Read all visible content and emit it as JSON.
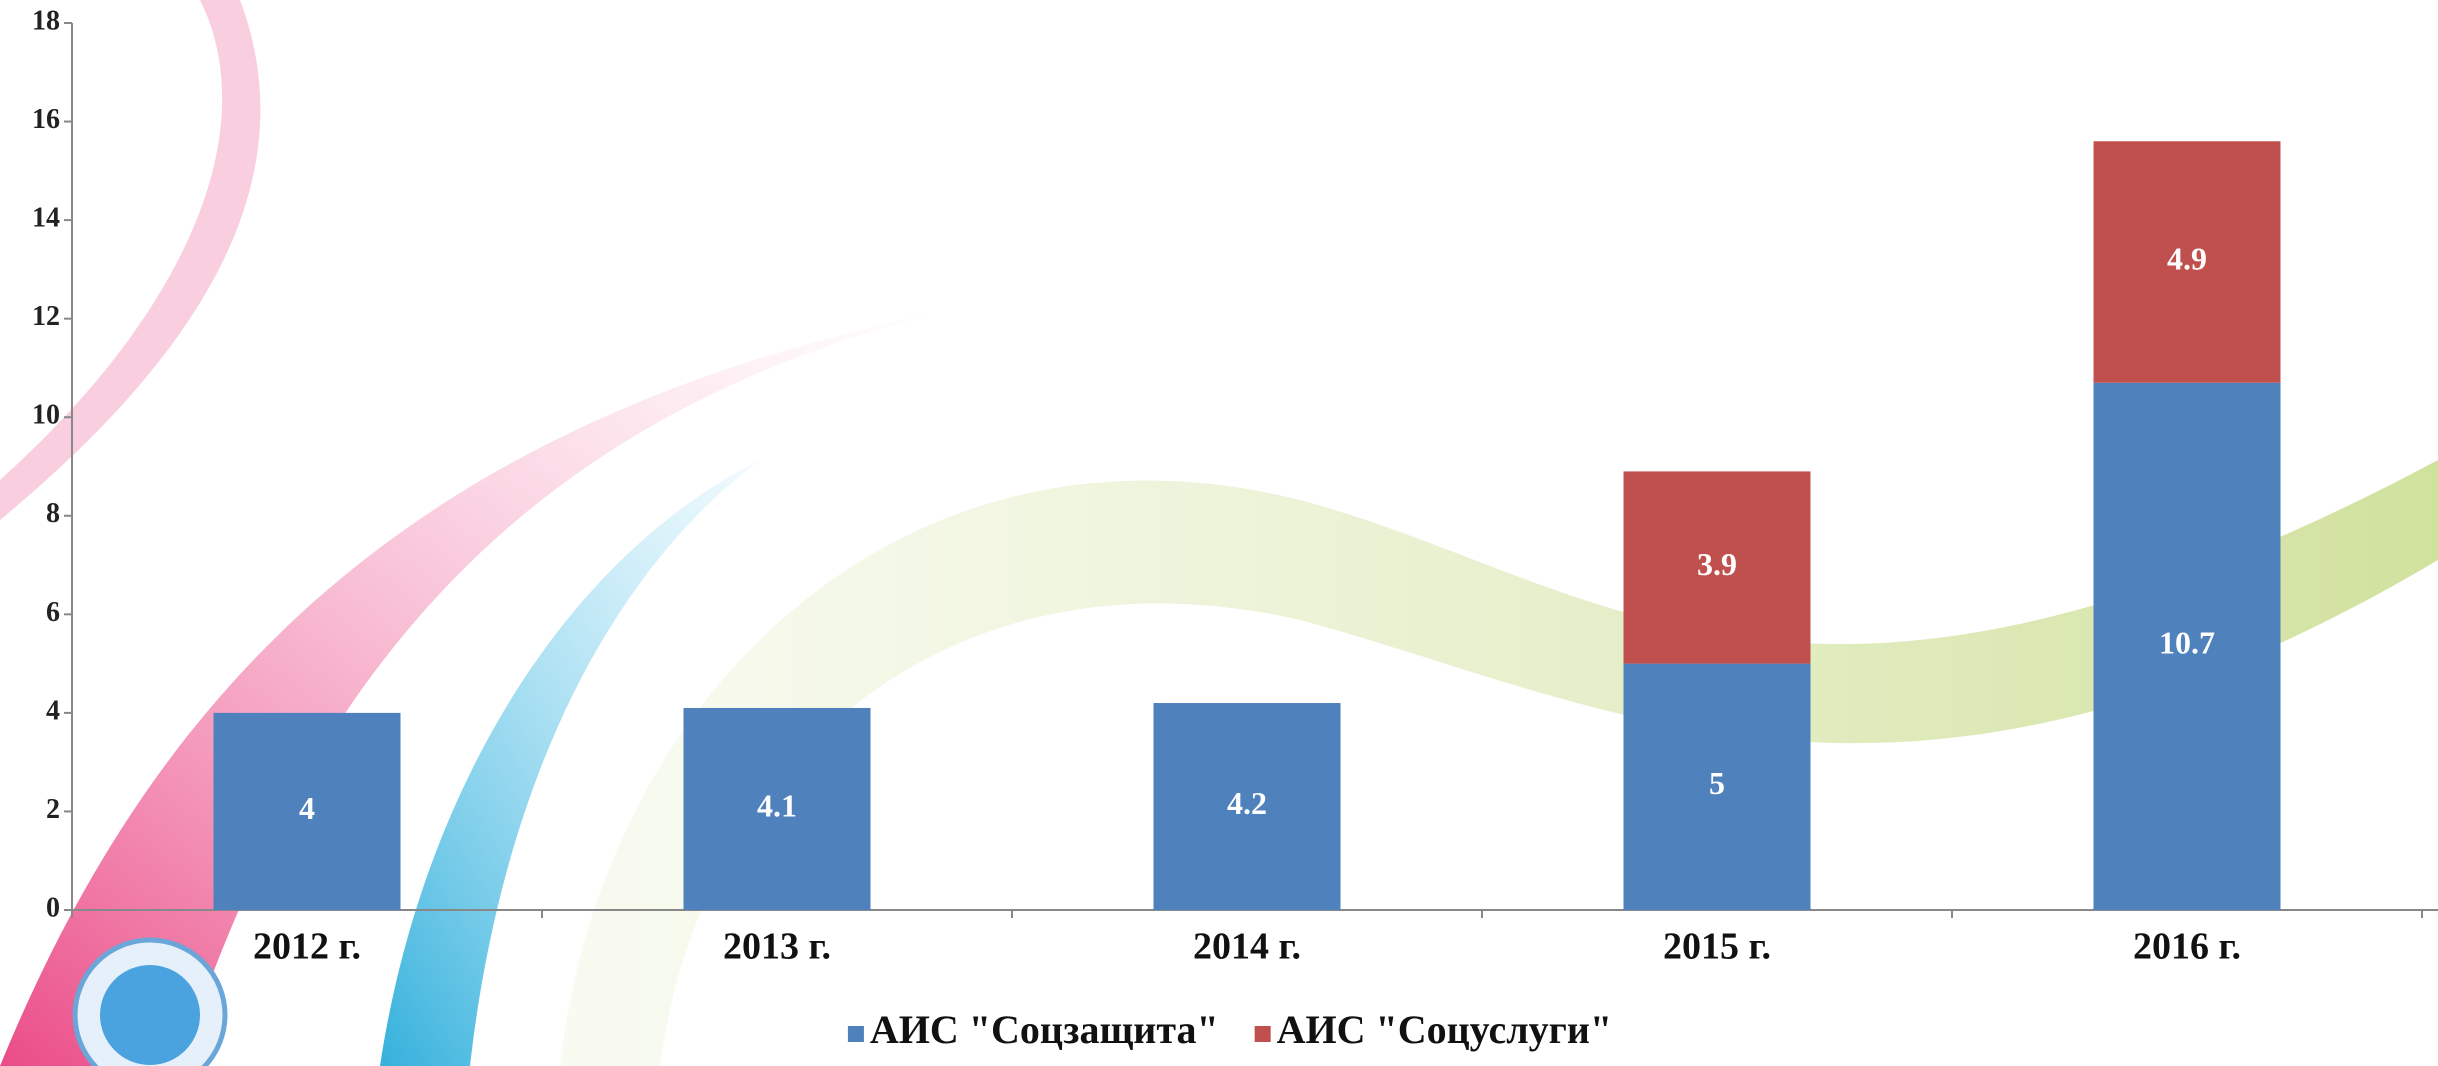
{
  "chart_data": {
    "type": "stacked_bar",
    "categories": [
      "2012 г.",
      "2013 г.",
      "2014 г.",
      "2015 г.",
      "2016 г."
    ],
    "series": [
      {
        "name": "АИС \"Соцзащита\"",
        "color": "#4f81bd",
        "values": [
          4,
          4.1,
          4.2,
          5,
          10.7
        ]
      },
      {
        "name": "АИС \"Соцуслуги\"",
        "color": "#c0504d",
        "values": [
          null,
          null,
          null,
          3.9,
          4.9
        ]
      }
    ],
    "ylim": [
      0,
      18
    ],
    "yticks": [
      0,
      2,
      4,
      6,
      8,
      10,
      12,
      14,
      16,
      18
    ],
    "grid": false,
    "legend": "bottom"
  }
}
